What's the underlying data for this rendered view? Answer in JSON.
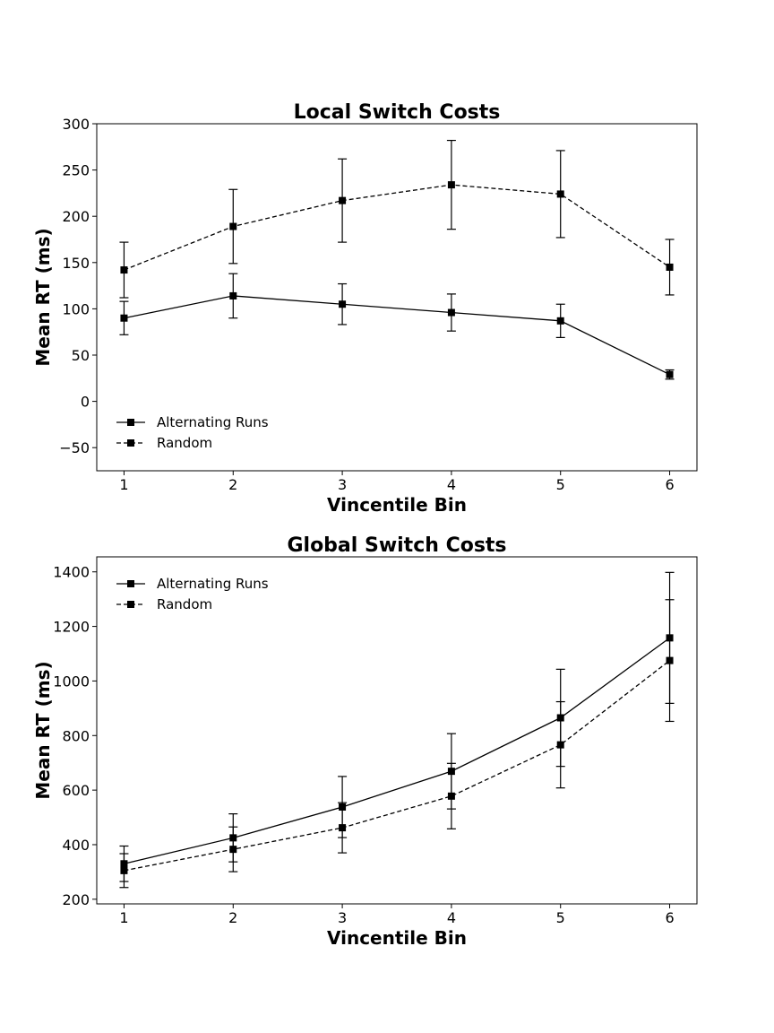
{
  "chart_data": [
    {
      "type": "line",
      "title": "Local Switch Costs",
      "xlabel": "Vincentile Bin",
      "ylabel": "Mean RT (ms)",
      "x": [
        1,
        2,
        3,
        4,
        5,
        6
      ],
      "xticks": [
        "1",
        "2",
        "3",
        "4",
        "5",
        "6"
      ],
      "xlim": [
        0.75,
        6.25
      ],
      "ylim": [
        -75,
        300
      ],
      "yticks": [
        -50,
        0,
        50,
        100,
        150,
        200,
        250,
        300
      ],
      "ytick_labels": [
        "−50",
        "0",
        "50",
        "100",
        "150",
        "200",
        "250",
        "300"
      ],
      "grid": false,
      "legend_position": "lower-left",
      "series": [
        {
          "name": "Alternating Runs",
          "line_style": "solid",
          "marker": "square",
          "values": [
            90,
            114,
            105,
            96,
            87,
            29
          ],
          "errors": [
            18,
            24,
            22,
            20,
            18,
            5
          ]
        },
        {
          "name": "Random",
          "line_style": "dashed",
          "marker": "square",
          "values": [
            142,
            189,
            217,
            234,
            224,
            145
          ],
          "errors": [
            30,
            40,
            45,
            48,
            47,
            30
          ]
        }
      ]
    },
    {
      "type": "line",
      "title": "Global Switch Costs",
      "xlabel": "Vincentile Bin",
      "ylabel": "Mean RT (ms)",
      "x": [
        1,
        2,
        3,
        4,
        5,
        6
      ],
      "xticks": [
        "1",
        "2",
        "3",
        "4",
        "5",
        "6"
      ],
      "xlim": [
        0.75,
        6.25
      ],
      "ylim": [
        183,
        1455
      ],
      "yticks": [
        200,
        400,
        600,
        800,
        1000,
        1200,
        1400
      ],
      "ytick_labels": [
        "200",
        "400",
        "600",
        "800",
        "1000",
        "1200",
        "1400"
      ],
      "grid": false,
      "legend_position": "upper-left",
      "series": [
        {
          "name": "Alternating Runs",
          "line_style": "solid",
          "marker": "square",
          "values": [
            330,
            425,
            538,
            669,
            865,
            1158
          ],
          "errors": [
            65,
            88,
            112,
            138,
            178,
            240
          ]
        },
        {
          "name": "Random",
          "line_style": "dashed",
          "marker": "square",
          "values": [
            305,
            383,
            462,
            578,
            766,
            1075
          ],
          "errors": [
            62,
            82,
            92,
            120,
            158,
            223
          ]
        }
      ]
    }
  ]
}
